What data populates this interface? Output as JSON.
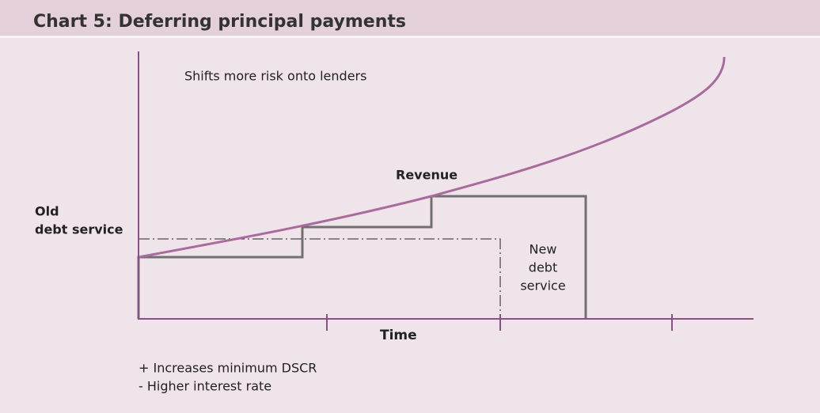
{
  "header": {
    "title": "Chart 5: Deferring principal payments"
  },
  "diagram": {
    "annotation": "Shifts more risk onto lenders",
    "revenue_label": "Revenue",
    "old_debt_label": [
      "Old",
      "debt service"
    ],
    "new_debt_label": [
      "New",
      "debt",
      "service"
    ],
    "x_axis_label": "Time",
    "notes": [
      "+ Increases minimum DSCR",
      "- Higher interest rate"
    ]
  }
}
